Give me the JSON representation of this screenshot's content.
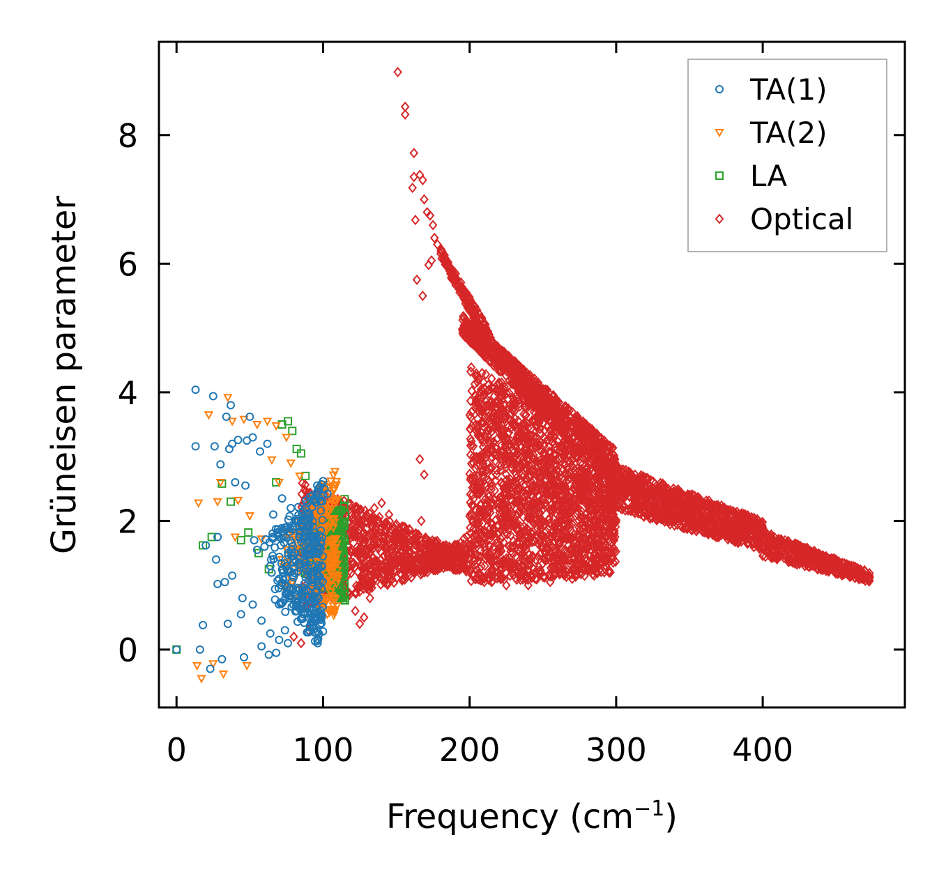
{
  "chart_data": {
    "type": "scatter",
    "xlabel": "Frequency (cm",
    "xlabel_sup": "−1",
    "xlabel_close": ")",
    "ylabel": "Grüneisen parameter",
    "xlim": [
      -12,
      497
    ],
    "ylim": [
      -0.9,
      9.45
    ],
    "x_ticks": [
      0,
      100,
      200,
      300,
      400
    ],
    "x_tick_labels": [
      "0",
      "100",
      "200",
      "300",
      "400"
    ],
    "y_ticks": [
      0,
      2,
      4,
      6,
      8
    ],
    "y_tick_labels": [
      "0",
      "2",
      "4",
      "6",
      "8"
    ],
    "legend_position": "top-right",
    "series": [
      {
        "name": "TA(1)",
        "marker": "circle",
        "color": "#1f77b4",
        "points": [
          [
            0,
            0
          ],
          [
            13,
            4.04
          ],
          [
            13,
            3.16
          ],
          [
            16,
            0
          ],
          [
            18,
            0.38
          ],
          [
            20,
            1.62
          ],
          [
            23,
            -0.3
          ],
          [
            25,
            3.94
          ],
          [
            26,
            3.16
          ],
          [
            28,
            1.02
          ],
          [
            28,
            1.75
          ],
          [
            30,
            2.88
          ],
          [
            31,
            -0.15
          ],
          [
            33,
            1.05
          ],
          [
            34,
            3.62
          ],
          [
            35,
            0.4
          ],
          [
            36,
            3.12
          ],
          [
            37,
            3.8
          ],
          [
            38,
            3.2
          ],
          [
            40,
            2.6
          ],
          [
            42,
            3.26
          ],
          [
            44,
            0.55
          ],
          [
            46,
            -0.12
          ],
          [
            47,
            2.55
          ],
          [
            48,
            3.25
          ],
          [
            50,
            3.62
          ],
          [
            52,
            3.3
          ],
          [
            53,
            1.7
          ],
          [
            55,
            1.55
          ],
          [
            57,
            3.08
          ],
          [
            58,
            0.05
          ],
          [
            60,
            1.6
          ],
          [
            62,
            3.2
          ],
          [
            63,
            -0.08
          ],
          [
            64,
            1.3
          ],
          [
            66,
            2.1
          ],
          [
            68,
            -0.05
          ],
          [
            70,
            1.1
          ],
          [
            72,
            2.35
          ],
          [
            74,
            0.3
          ],
          [
            75,
            1.9
          ],
          [
            77,
            0.8
          ],
          [
            78,
            2.2
          ],
          [
            80,
            1.4
          ],
          [
            82,
            0.6
          ],
          [
            84,
            1.8
          ],
          [
            85,
            2.0
          ],
          [
            87,
            0.9
          ],
          [
            88,
            1.5
          ],
          [
            90,
            2.1
          ],
          [
            92,
            1.2
          ],
          [
            93,
            2.4
          ],
          [
            95,
            1.7
          ],
          [
            96,
            2.55
          ],
          [
            98,
            2.3
          ],
          [
            100,
            2.62
          ],
          [
            101,
            2.5
          ],
          [
            103,
            2.42
          ],
          [
            27,
            1.4
          ],
          [
            38,
            1.15
          ],
          [
            45,
            0.8
          ],
          [
            52,
            0.7
          ],
          [
            58,
            0.45
          ],
          [
            64,
            0.25
          ],
          [
            70,
            0.15
          ],
          [
            76,
            0.1
          ]
        ],
        "cloud": {
          "x_min": 60,
          "x_max": 100,
          "y_base_min": 0.0,
          "y_base_max": 0.9,
          "y_top_min": 1.7,
          "y_top_max": 2.6,
          "count": 320
        }
      },
      {
        "name": "TA(2)",
        "marker": "triangle-down",
        "color": "#ff7f0e",
        "points": [
          [
            14,
            -0.25
          ],
          [
            15,
            2.28
          ],
          [
            17,
            -0.45
          ],
          [
            22,
            3.65
          ],
          [
            25,
            -0.22
          ],
          [
            28,
            2.3
          ],
          [
            30,
            2.6
          ],
          [
            32,
            -0.38
          ],
          [
            35,
            3.92
          ],
          [
            38,
            3.55
          ],
          [
            40,
            1.75
          ],
          [
            42,
            2.32
          ],
          [
            46,
            3.58
          ],
          [
            48,
            -0.25
          ],
          [
            50,
            2.08
          ],
          [
            55,
            3.5
          ],
          [
            58,
            1.72
          ],
          [
            62,
            3.55
          ],
          [
            65,
            2.95
          ],
          [
            68,
            3.48
          ],
          [
            70,
            2.6
          ],
          [
            72,
            1.4
          ],
          [
            75,
            3.3
          ],
          [
            78,
            2.9
          ],
          [
            80,
            0.8
          ],
          [
            84,
            2.7
          ],
          [
            88,
            1.3
          ],
          [
            92,
            2.2
          ],
          [
            96,
            1.6
          ],
          [
            100,
            1.9
          ],
          [
            104,
            1.5
          ],
          [
            108,
            1.35
          ],
          [
            110,
            1.1
          ]
        ],
        "cloud": {
          "x_min": 70,
          "x_max": 110,
          "y_base_min": 0.45,
          "y_base_max": 1.0,
          "y_top_min": 1.6,
          "y_top_max": 2.9,
          "count": 300
        }
      },
      {
        "name": "LA",
        "marker": "square",
        "color": "#2ca02c",
        "points": [
          [
            0,
            0
          ],
          [
            18,
            1.62
          ],
          [
            24,
            1.75
          ],
          [
            31,
            2.58
          ],
          [
            37,
            2.3
          ],
          [
            44,
            1.7
          ],
          [
            49,
            1.82
          ],
          [
            56,
            1.5
          ],
          [
            63,
            1.25
          ],
          [
            68,
            2.6
          ],
          [
            72,
            3.5
          ],
          [
            76,
            3.55
          ],
          [
            79,
            3.4
          ],
          [
            82,
            3.12
          ],
          [
            85,
            3.05
          ],
          [
            88,
            2.7
          ],
          [
            92,
            2.3
          ],
          [
            96,
            1.9
          ],
          [
            100,
            1.7
          ],
          [
            104,
            1.5
          ],
          [
            108,
            1.3
          ],
          [
            112,
            1.85
          ],
          [
            114,
            1.95
          ]
        ],
        "cloud": {
          "x_min": 85,
          "x_max": 115,
          "y_base_min": 0.7,
          "y_base_max": 1.2,
          "y_top_min": 1.7,
          "y_top_max": 2.35,
          "count": 220
        }
      },
      {
        "name": "Optical",
        "marker": "diamond",
        "color": "#d62728",
        "points": [
          [
            151,
            8.98
          ],
          [
            156,
            8.44
          ],
          [
            156,
            8.32
          ],
          [
            162,
            7.72
          ],
          [
            162,
            7.35
          ],
          [
            166,
            7.38
          ],
          [
            168,
            7.3
          ],
          [
            161,
            7.18
          ],
          [
            169,
            7.0
          ],
          [
            171,
            6.8
          ],
          [
            173,
            6.75
          ],
          [
            163,
            6.68
          ],
          [
            175,
            6.6
          ],
          [
            176,
            6.4
          ],
          [
            178,
            6.3
          ],
          [
            172,
            5.98
          ],
          [
            174,
            6.05
          ],
          [
            164,
            5.75
          ],
          [
            168,
            5.5
          ],
          [
            166,
            2.96
          ],
          [
            169,
            2.72
          ],
          [
            167,
            2.0
          ],
          [
            80,
            0.2
          ],
          [
            85,
            0.1
          ],
          [
            90,
            0.3
          ],
          [
            95,
            0.5
          ],
          [
            100,
            0.75
          ],
          [
            105,
            0.95
          ],
          [
            112,
            1.05
          ],
          [
            118,
            0.85
          ],
          [
            122,
            0.6
          ],
          [
            125,
            0.4
          ],
          [
            128,
            0.5
          ],
          [
            132,
            0.8
          ],
          [
            135,
            2.2
          ],
          [
            140,
            2.28
          ],
          [
            145,
            2.1
          ],
          [
            150,
            1.95
          ],
          [
            155,
            1.8
          ],
          [
            160,
            1.6
          ],
          [
            165,
            1.5
          ],
          [
            170,
            1.45
          ],
          [
            175,
            1.4
          ],
          [
            180,
            1.35
          ],
          [
            185,
            1.3
          ],
          [
            190,
            1.25
          ],
          [
            195,
            1.3
          ],
          [
            200,
            1.2
          ],
          [
            205,
            1.1
          ],
          [
            210,
            1.05
          ],
          [
            215,
            1.05
          ],
          [
            225,
            1.0
          ],
          [
            240,
            1.0
          ],
          [
            255,
            1.05
          ],
          [
            270,
            1.1
          ],
          [
            285,
            1.15
          ],
          [
            296,
            1.2
          ],
          [
            240,
            1.85
          ],
          [
            250,
            1.6
          ],
          [
            255,
            1.75
          ],
          [
            265,
            2.1
          ],
          [
            270,
            1.95
          ],
          [
            275,
            1.7
          ],
          [
            285,
            2.0
          ],
          [
            290,
            1.8
          ],
          [
            300,
            2.85
          ],
          [
            310,
            2.7
          ],
          [
            320,
            2.5
          ],
          [
            330,
            2.4
          ],
          [
            340,
            2.3
          ],
          [
            350,
            2.1
          ],
          [
            360,
            2.05
          ],
          [
            370,
            2.0
          ],
          [
            380,
            1.95
          ],
          [
            388,
            1.9
          ],
          [
            395,
            1.7
          ],
          [
            400,
            1.65
          ],
          [
            410,
            1.6
          ],
          [
            420,
            1.55
          ],
          [
            430,
            1.5
          ],
          [
            440,
            1.42
          ],
          [
            450,
            1.3
          ],
          [
            460,
            1.2
          ],
          [
            468,
            1.1
          ],
          [
            472,
            1.12
          ]
        ],
        "bands": [
          {
            "x0": 85,
            "x1": 187,
            "ylo0": 0.6,
            "yhi0": 2.6,
            "ylo1": 1.3,
            "yhi1": 1.6,
            "count": 900
          },
          {
            "x0": 187,
            "x1": 200,
            "ylo0": 1.25,
            "yhi0": 1.6,
            "ylo1": 1.2,
            "yhi1": 1.8,
            "count": 80
          },
          {
            "x0": 195,
            "x1": 300,
            "ylo0": 4.9,
            "yhi0": 5.2,
            "ylo1": 2.5,
            "yhi1": 3.1,
            "count": 900
          },
          {
            "x0": 180,
            "x1": 215,
            "ylo0": 6.1,
            "yhi0": 6.25,
            "ylo1": 4.6,
            "yhi1": 4.9,
            "count": 180
          },
          {
            "x0": 200,
            "x1": 260,
            "ylo0": 1.05,
            "yhi0": 4.4,
            "ylo1": 1.1,
            "yhi1": 3.8,
            "count": 1200
          },
          {
            "x0": 260,
            "x1": 300,
            "ylo0": 1.1,
            "yhi0": 3.3,
            "ylo1": 1.2,
            "yhi1": 2.9,
            "count": 700
          },
          {
            "x0": 295,
            "x1": 400,
            "ylo0": 2.2,
            "yhi0": 2.9,
            "ylo1": 1.55,
            "yhi1": 2.0,
            "count": 900
          },
          {
            "x0": 400,
            "x1": 473,
            "ylo0": 1.45,
            "yhi0": 1.85,
            "ylo1": 1.05,
            "yhi1": 1.2,
            "count": 450
          }
        ]
      }
    ]
  }
}
